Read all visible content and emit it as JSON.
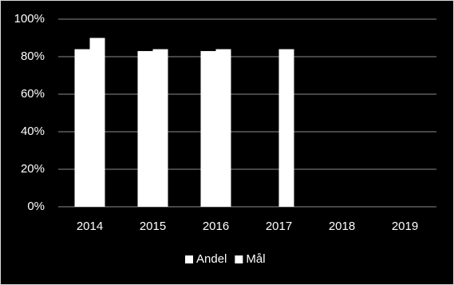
{
  "chart_data": {
    "type": "bar",
    "categories": [
      "2014",
      "2015",
      "2016",
      "2017",
      "2018",
      "2019"
    ],
    "series": [
      {
        "name": "Andel",
        "color": "#ffffff",
        "values": [
          84,
          83,
          83,
          null,
          null,
          null
        ]
      },
      {
        "name": "Mål",
        "color": "#ffffff",
        "values": [
          90,
          84,
          84,
          84,
          null,
          null
        ]
      }
    ],
    "ylim": [
      0,
      100
    ],
    "yticks": [
      {
        "value": 0,
        "label": "0%"
      },
      {
        "value": 20,
        "label": "20%"
      },
      {
        "value": 40,
        "label": "40%"
      },
      {
        "value": 60,
        "label": "60%"
      },
      {
        "value": 80,
        "label": "80%"
      },
      {
        "value": 100,
        "label": "100%"
      }
    ],
    "grid": true,
    "legend": "bottom"
  }
}
